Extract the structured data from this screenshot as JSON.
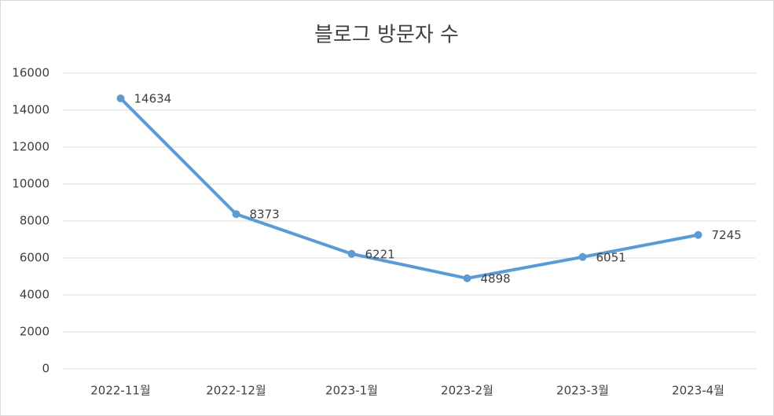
{
  "chart_data": {
    "type": "line",
    "title": "블로그 방문자 수",
    "categories": [
      "2022-11월",
      "2022-12월",
      "2023-1월",
      "2023-2월",
      "2023-3월",
      "2023-4월"
    ],
    "values": [
      14634,
      8373,
      6221,
      4898,
      6051,
      7245
    ],
    "color": "#5b9bd5",
    "ylim": [
      0,
      16000
    ],
    "yticks": [
      0,
      2000,
      4000,
      6000,
      8000,
      10000,
      12000,
      14000,
      16000
    ],
    "grid": true,
    "data_labels": true
  }
}
